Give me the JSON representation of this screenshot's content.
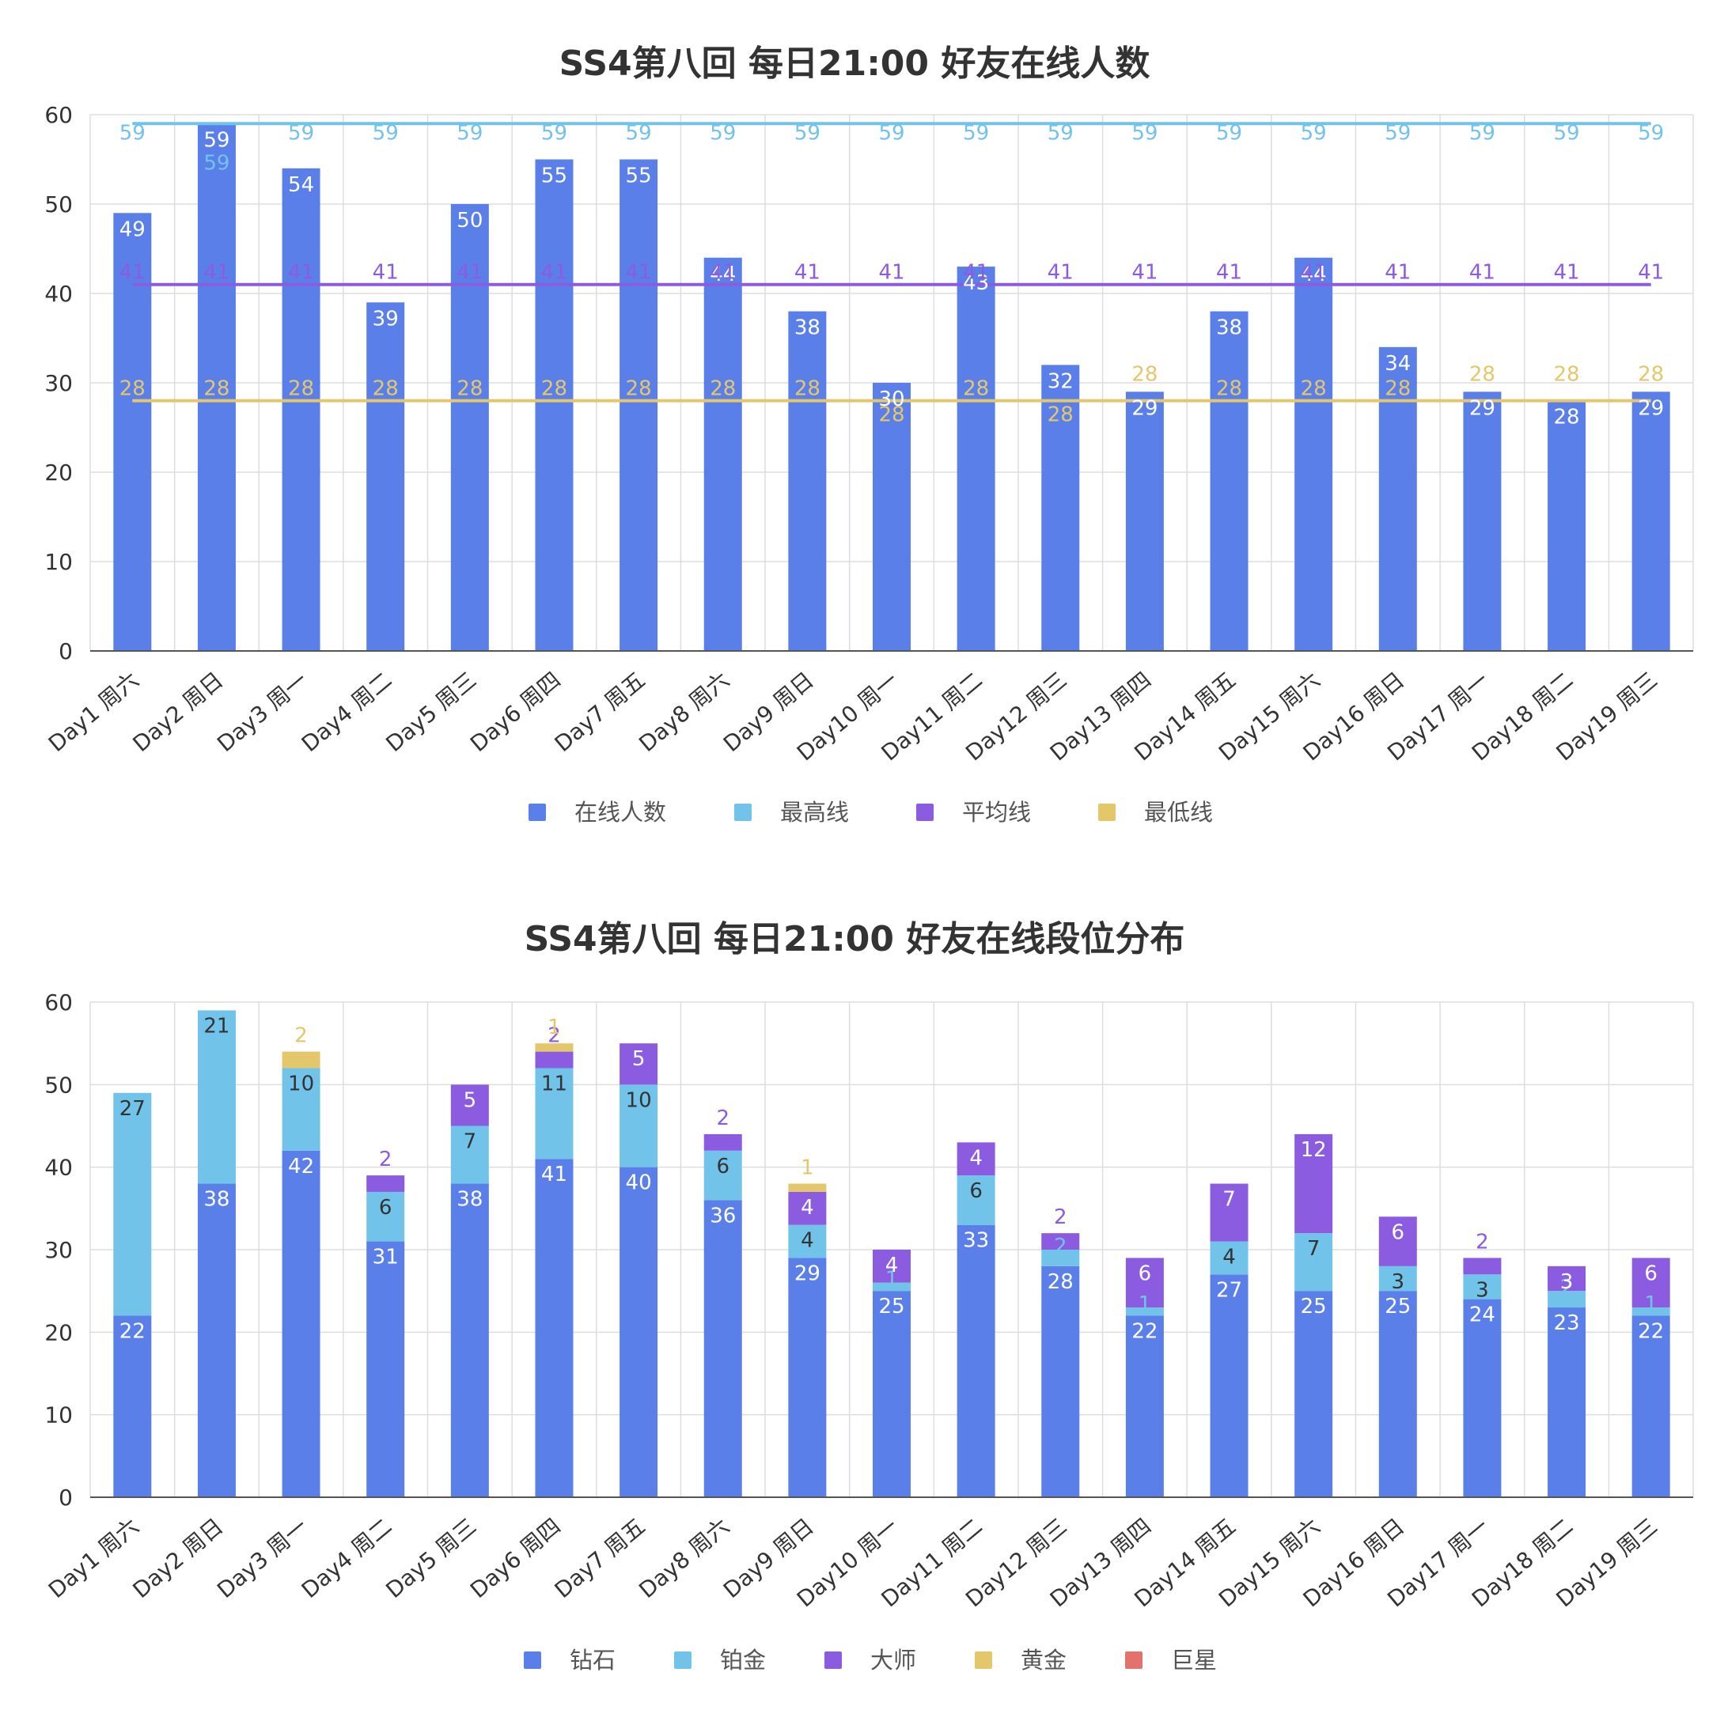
{
  "colors": {
    "diamond": "#5b7fe8",
    "platinum": "#72c3ea",
    "master": "#8c5ce0",
    "gold": "#e5c76b",
    "star": "#e2726b",
    "max_line": "#72c3ea",
    "avg_line": "#8c5ce0",
    "min_line": "#e5c76b",
    "grid": "#dddddd",
    "axis": "#555555"
  },
  "chart_data": [
    {
      "type": "bar",
      "title": "SS4第八回 每日21:00 好友在线人数",
      "categories": [
        "Day1 周六",
        "Day2 周日",
        "Day3 周一",
        "Day4 周二",
        "Day5 周三",
        "Day6 周四",
        "Day7 周五",
        "Day8 周六",
        "Day9 周日",
        "Day10 周一",
        "Day11 周二",
        "Day12 周三",
        "Day13 周四",
        "Day14 周五",
        "Day15 周六",
        "Day16 周日",
        "Day17 周一",
        "Day18 周二",
        "Day19 周三"
      ],
      "ylim": [
        0,
        60
      ],
      "yticks": [
        "0",
        "10",
        "20",
        "30",
        "40",
        "50",
        "60"
      ],
      "grid": true,
      "legend_position": "bottom",
      "series": [
        {
          "name": "在线人数",
          "kind": "bar",
          "values": [
            49,
            59,
            54,
            39,
            50,
            55,
            55,
            44,
            38,
            30,
            43,
            32,
            29,
            38,
            44,
            34,
            29,
            28,
            29
          ]
        },
        {
          "name": "最高线",
          "kind": "line",
          "values": [
            59,
            59,
            59,
            59,
            59,
            59,
            59,
            59,
            59,
            59,
            59,
            59,
            59,
            59,
            59,
            59,
            59,
            59,
            59
          ]
        },
        {
          "name": "平均线",
          "kind": "line",
          "values": [
            41,
            41,
            41,
            41,
            41,
            41,
            41,
            41,
            41,
            41,
            41,
            41,
            41,
            41,
            41,
            41,
            41,
            41,
            41
          ]
        },
        {
          "name": "最低线",
          "kind": "line",
          "values": [
            28,
            28,
            28,
            28,
            28,
            28,
            28,
            28,
            28,
            28,
            28,
            28,
            28,
            28,
            28,
            28,
            28,
            28,
            28
          ]
        }
      ]
    },
    {
      "type": "bar",
      "stacked": true,
      "title": "SS4第八回 每日21:00 好友在线段位分布",
      "categories": [
        "Day1 周六",
        "Day2 周日",
        "Day3 周一",
        "Day4 周二",
        "Day5 周三",
        "Day6 周四",
        "Day7 周五",
        "Day8 周六",
        "Day9 周日",
        "Day10 周一",
        "Day11 周二",
        "Day12 周三",
        "Day13 周四",
        "Day14 周五",
        "Day15 周六",
        "Day16 周日",
        "Day17 周一",
        "Day18 周二",
        "Day19 周三"
      ],
      "ylim": [
        0,
        60
      ],
      "yticks": [
        "0",
        "10",
        "20",
        "30",
        "40",
        "50",
        "60"
      ],
      "grid": true,
      "legend_position": "bottom",
      "series": [
        {
          "name": "钻石",
          "values": [
            22,
            38,
            42,
            31,
            38,
            41,
            40,
            36,
            29,
            25,
            33,
            28,
            22,
            27,
            25,
            25,
            24,
            23,
            22
          ]
        },
        {
          "name": "铂金",
          "values": [
            27,
            21,
            10,
            6,
            7,
            11,
            10,
            6,
            4,
            1,
            6,
            2,
            1,
            4,
            7,
            3,
            3,
            2,
            1
          ]
        },
        {
          "name": "大师",
          "values": [
            0,
            0,
            0,
            2,
            5,
            2,
            5,
            2,
            4,
            4,
            4,
            2,
            6,
            7,
            12,
            6,
            2,
            3,
            6
          ]
        },
        {
          "name": "黄金",
          "values": [
            0,
            0,
            2,
            0,
            0,
            1,
            0,
            0,
            1,
            0,
            0,
            0,
            0,
            0,
            0,
            0,
            0,
            0,
            0
          ]
        },
        {
          "name": "巨星",
          "values": [
            0,
            0,
            0,
            0,
            0,
            0,
            0,
            0,
            0,
            0,
            0,
            0,
            0,
            0,
            0,
            0,
            0,
            0,
            0
          ]
        }
      ]
    }
  ]
}
